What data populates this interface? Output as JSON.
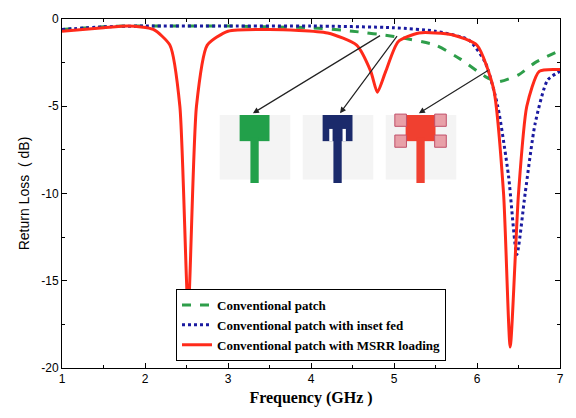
{
  "chart_data": {
    "type": "line",
    "x_label": "Frequency (GHz )",
    "y_label": "Return Loss  ( dB)",
    "xlim": [
      1,
      7
    ],
    "xticks": [
      1,
      2,
      3,
      4,
      5,
      6,
      7
    ],
    "ylim": [
      -20,
      0
    ],
    "yticks": [
      -20,
      -15,
      -10,
      -5,
      0
    ],
    "grid": false,
    "legend": "bottom",
    "series": [
      {
        "name": "Conventional patch",
        "color": "#2e9e4a",
        "line_style": "dashed",
        "x": [
          1,
          1.5,
          1.8,
          2.5,
          3,
          3.5,
          4,
          4.5,
          5,
          5.5,
          5.8,
          6.1,
          6.25,
          6.5,
          6.7,
          7
        ],
        "values": [
          -0.6,
          -0.45,
          -0.4,
          -0.4,
          -0.4,
          -0.45,
          -0.5,
          -0.7,
          -1.0,
          -1.5,
          -2.3,
          -3.3,
          -3.6,
          -3.2,
          -2.5,
          -1.8
        ]
      },
      {
        "name": "Conventional patch with inset fed",
        "color": "#1a1aa0",
        "line_style": "dotted",
        "x": [
          1,
          1.5,
          2,
          3,
          4,
          5,
          5.5,
          5.9,
          6.1,
          6.25,
          6.38,
          6.48,
          6.58,
          6.7,
          6.85,
          7
        ],
        "values": [
          -0.6,
          -0.45,
          -0.4,
          -0.4,
          -0.4,
          -0.5,
          -0.7,
          -1.2,
          -2.5,
          -5,
          -9,
          -13.5,
          -10,
          -6,
          -3.5,
          -3
        ]
      },
      {
        "name": "Conventional patch with MSRR loading",
        "color": "#ff2a1a",
        "line_style": "solid",
        "x": [
          1,
          1.5,
          1.8,
          2.1,
          2.3,
          2.42,
          2.52,
          2.62,
          2.75,
          3,
          3.5,
          4.2,
          4.55,
          4.72,
          4.8,
          4.9,
          5.05,
          5.3,
          5.7,
          6.0,
          6.2,
          6.32,
          6.4,
          6.5,
          6.6,
          6.75,
          7
        ],
        "values": [
          -0.7,
          -0.5,
          -0.4,
          -0.6,
          -1.5,
          -5,
          -16.7,
          -5,
          -1.5,
          -0.7,
          -0.6,
          -0.8,
          -1.5,
          -3,
          -4.2,
          -3,
          -1.3,
          -0.8,
          -0.9,
          -1.5,
          -4,
          -10,
          -18.8,
          -10,
          -5,
          -3,
          -2.9
        ]
      }
    ]
  }
}
